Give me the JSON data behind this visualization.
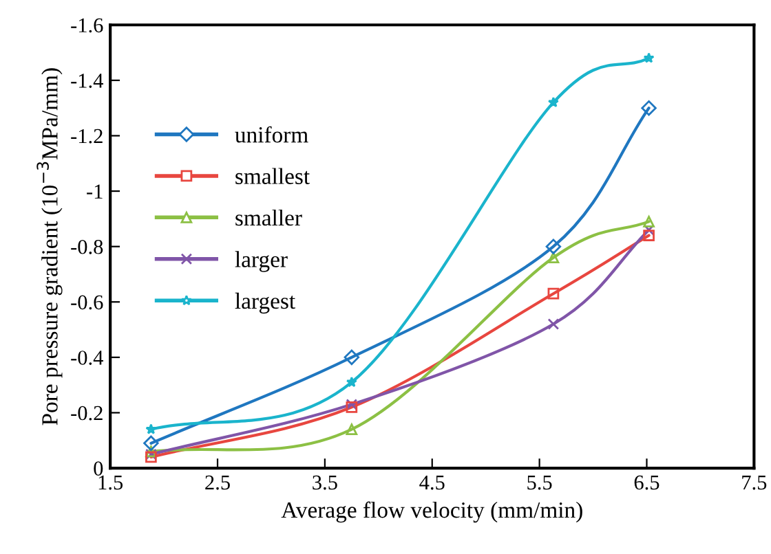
{
  "chart_data": {
    "type": "line",
    "xlabel": "Average flow velocity (mm/min)",
    "ylabel": "Pore pressure gradient (10$^{−3}$MPa/mm)",
    "x": [
      1.88,
      3.75,
      5.63,
      6.52
    ],
    "series": [
      {
        "name": "uniform",
        "color": "#1f77c0",
        "marker": "diamond",
        "values": [
          -0.09,
          -0.4,
          -0.8,
          -1.3
        ]
      },
      {
        "name": "smallest",
        "color": "#e8463f",
        "marker": "square",
        "values": [
          -0.04,
          -0.22,
          -0.63,
          -0.84
        ]
      },
      {
        "name": "smaller",
        "color": "#8cc044",
        "marker": "triangle",
        "values": [
          -0.06,
          -0.14,
          -0.76,
          -0.89
        ]
      },
      {
        "name": "larger",
        "color": "#8055a8",
        "marker": "cross",
        "values": [
          -0.05,
          -0.23,
          -0.52,
          -0.86
        ]
      },
      {
        "name": "largest",
        "color": "#1ab4cc",
        "marker": "star",
        "values": [
          -0.14,
          -0.31,
          -1.32,
          -1.48
        ]
      }
    ],
    "xlim": [
      1.5,
      7.5
    ],
    "xticks": [
      1.5,
      2.5,
      3.5,
      4.5,
      5.5,
      6.5,
      7.5
    ],
    "ylim": [
      0,
      -1.6
    ],
    "yticks": [
      0,
      -0.2,
      -0.4,
      -0.6,
      -0.8,
      -1,
      -1.2,
      -1.4,
      -1.6
    ],
    "grid": false,
    "legend": "left",
    "line_style": "solid"
  }
}
